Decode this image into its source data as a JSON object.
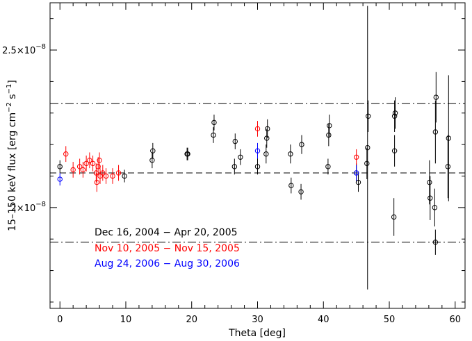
{
  "chart_data": {
    "type": "scatter",
    "xlabel": "Theta [deg]",
    "ylabel": "15–150 keV flux [erg cm",
    "ylabel_sup1": "−2",
    "ylabel_mid": " s",
    "ylabel_sup2": "−1",
    "ylabel_end": "]",
    "xlim": [
      -1.5,
      61.5
    ],
    "ylim": [
      1.68,
      2.65
    ],
    "x_ticks": [
      0,
      10,
      20,
      30,
      40,
      50,
      60
    ],
    "x_tick_labels": [
      "0",
      "10",
      "20",
      "30",
      "40",
      "50",
      "60"
    ],
    "y_ticks": [
      2.0,
      2.5
    ],
    "y_tick_labels": [
      {
        "mant": "2×10",
        "exp": "−8"
      },
      {
        "mant": "2.5×10",
        "exp": "−8"
      }
    ],
    "y_unit": "1e-8 erg cm^-2 s^-1",
    "reference_lines": [
      {
        "y": 2.11,
        "style": "dashed"
      },
      {
        "y": 2.33,
        "style": "dashdot"
      },
      {
        "y": 1.89,
        "style": "dashdot"
      }
    ],
    "grid": false,
    "legend_position": "bottom-left",
    "series": [
      {
        "name": "Dec 16, 2004 − Apr 20, 2005",
        "color": "#000000",
        "points": [
          {
            "x": 0.0,
            "y": 2.13,
            "err": 0.02
          },
          {
            "x": 9.8,
            "y": 2.1,
            "err": 0.02
          },
          {
            "x": 14.0,
            "y": 2.15,
            "err": 0.025
          },
          {
            "x": 14.1,
            "y": 2.18,
            "err": 0.025
          },
          {
            "x": 19.3,
            "y": 2.17,
            "err": 0.02
          },
          {
            "x": 19.4,
            "y": 2.17,
            "err": 0.02
          },
          {
            "x": 23.3,
            "y": 2.23,
            "err": 0.025
          },
          {
            "x": 23.4,
            "y": 2.27,
            "err": 0.025
          },
          {
            "x": 26.5,
            "y": 2.13,
            "err": 0.025
          },
          {
            "x": 26.6,
            "y": 2.21,
            "err": 0.025
          },
          {
            "x": 27.4,
            "y": 2.16,
            "err": 0.025
          },
          {
            "x": 30.0,
            "y": 2.13,
            "err": 0.025
          },
          {
            "x": 31.3,
            "y": 2.17,
            "err": 0.03
          },
          {
            "x": 31.4,
            "y": 2.22,
            "err": 0.03
          },
          {
            "x": 31.5,
            "y": 2.25,
            "err": 0.03
          },
          {
            "x": 35.0,
            "y": 2.17,
            "err": 0.03
          },
          {
            "x": 35.1,
            "y": 2.07,
            "err": 0.025
          },
          {
            "x": 36.6,
            "y": 2.05,
            "err": 0.025
          },
          {
            "x": 36.7,
            "y": 2.2,
            "err": 0.03
          },
          {
            "x": 40.7,
            "y": 2.13,
            "err": 0.025
          },
          {
            "x": 40.8,
            "y": 2.23,
            "err": 0.035
          },
          {
            "x": 40.9,
            "y": 2.26,
            "err": 0.035
          },
          {
            "x": 45.0,
            "y": 2.11,
            "err": 0.03
          },
          {
            "x": 45.3,
            "y": 2.08,
            "err": 0.03
          },
          {
            "x": 46.6,
            "y": 2.14,
            "err": 0.05
          },
          {
            "x": 46.7,
            "y": 2.19,
            "err": 0.45
          },
          {
            "x": 46.8,
            "y": 2.29,
            "err": 0.05
          },
          {
            "x": 50.7,
            "y": 1.97,
            "err": 0.06
          },
          {
            "x": 50.8,
            "y": 2.18,
            "err": 0.05
          },
          {
            "x": 50.8,
            "y": 2.29,
            "err": 0.05
          },
          {
            "x": 50.9,
            "y": 2.3,
            "err": 0.05
          },
          {
            "x": 56.1,
            "y": 2.08,
            "err": 0.07
          },
          {
            "x": 56.2,
            "y": 2.03,
            "err": 0.07
          },
          {
            "x": 56.9,
            "y": 2.0,
            "err": 0.06
          },
          {
            "x": 57.0,
            "y": 1.89,
            "err": 0.04
          },
          {
            "x": 57.0,
            "y": 2.24,
            "err": 0.1
          },
          {
            "x": 57.1,
            "y": 2.35,
            "err": 0.08
          },
          {
            "x": 58.9,
            "y": 2.13,
            "err": 0.1
          },
          {
            "x": 59.0,
            "y": 2.22,
            "err": 0.2
          }
        ]
      },
      {
        "name": "Nov 10, 2005 − Nov 15, 2005",
        "color": "#ff0000",
        "points": [
          {
            "x": 0.9,
            "y": 2.17,
            "err": 0.025
          },
          {
            "x": 2.0,
            "y": 2.12,
            "err": 0.025
          },
          {
            "x": 3.0,
            "y": 2.13,
            "err": 0.025
          },
          {
            "x": 3.5,
            "y": 2.12,
            "err": 0.025
          },
          {
            "x": 4.0,
            "y": 2.14,
            "err": 0.025
          },
          {
            "x": 4.5,
            "y": 2.15,
            "err": 0.025
          },
          {
            "x": 5.0,
            "y": 2.14,
            "err": 0.025
          },
          {
            "x": 5.5,
            "y": 2.11,
            "err": 0.03
          },
          {
            "x": 5.6,
            "y": 2.08,
            "err": 0.03
          },
          {
            "x": 5.8,
            "y": 2.13,
            "err": 0.03
          },
          {
            "x": 6.0,
            "y": 2.15,
            "err": 0.025
          },
          {
            "x": 6.1,
            "y": 2.1,
            "err": 0.025
          },
          {
            "x": 6.5,
            "y": 2.11,
            "err": 0.025
          },
          {
            "x": 7.0,
            "y": 2.1,
            "err": 0.025
          },
          {
            "x": 8.0,
            "y": 2.1,
            "err": 0.025
          },
          {
            "x": 8.9,
            "y": 2.11,
            "err": 0.025
          },
          {
            "x": 30.0,
            "y": 2.25,
            "err": 0.025
          },
          {
            "x": 45.0,
            "y": 2.16,
            "err": 0.025
          }
        ]
      },
      {
        "name": "Aug 24, 2006 − Aug 30, 2006",
        "color": "#0000ff",
        "points": [
          {
            "x": 0.0,
            "y": 2.09,
            "err": 0.02
          },
          {
            "x": 30.0,
            "y": 2.18,
            "err": 0.025
          },
          {
            "x": 45.0,
            "y": 2.11,
            "err": 0.025
          }
        ]
      }
    ]
  }
}
